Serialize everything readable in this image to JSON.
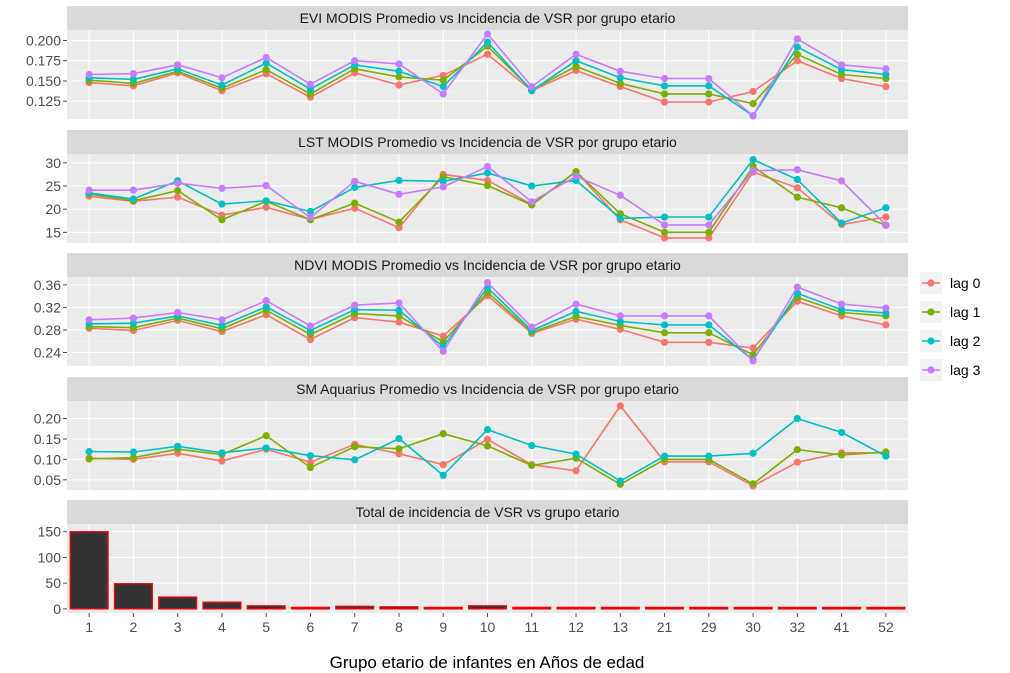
{
  "chart_data": {
    "x_axis": {
      "title": "Grupo etario de infantes en Años de edad",
      "categories": [
        "1",
        "2",
        "3",
        "4",
        "5",
        "6",
        "7",
        "8",
        "9",
        "10",
        "11",
        "12",
        "13",
        "21",
        "29",
        "30",
        "32",
        "41",
        "52"
      ]
    },
    "legend": {
      "placement": "right",
      "entries": [
        {
          "name": "lag 0",
          "color": "#F8766D"
        },
        {
          "name": "lag 1",
          "color": "#7CAE00"
        },
        {
          "name": "lag 2",
          "color": "#00BFC4"
        },
        {
          "name": "lag 3",
          "color": "#C77CFF"
        }
      ]
    },
    "panels": [
      {
        "type": "line",
        "title": "EVI MODIS Promedio vs Incidencia de VSR por grupo etario",
        "ylim": [
          0.103,
          0.213
        ],
        "yticks": [
          0.125,
          0.15,
          0.175,
          0.2
        ],
        "ytick_labels": [
          "0.125",
          "0.150",
          "0.175",
          "0.200"
        ],
        "series": [
          {
            "name": "lag 0",
            "color": "#F8766D",
            "values": [
              0.148,
              0.144,
              0.16,
              0.138,
              0.159,
              0.13,
              0.16,
              0.145,
              0.157,
              0.183,
              0.138,
              0.163,
              0.143,
              0.124,
              0.124,
              0.137,
              0.175,
              0.153,
              0.143
            ]
          },
          {
            "name": "lag 1",
            "color": "#7CAE00",
            "values": [
              0.151,
              0.147,
              0.162,
              0.141,
              0.164,
              0.134,
              0.165,
              0.155,
              0.151,
              0.193,
              0.139,
              0.168,
              0.147,
              0.134,
              0.134,
              0.122,
              0.183,
              0.158,
              0.153
            ]
          },
          {
            "name": "lag 2",
            "color": "#00BFC4",
            "values": [
              0.154,
              0.152,
              0.165,
              0.145,
              0.172,
              0.14,
              0.17,
              0.162,
              0.143,
              0.198,
              0.138,
              0.175,
              0.154,
              0.144,
              0.144,
              0.107,
              0.192,
              0.164,
              0.158
            ]
          },
          {
            "name": "lag 3",
            "color": "#C77CFF",
            "values": [
              0.158,
              0.159,
              0.17,
              0.154,
              0.179,
              0.146,
              0.175,
              0.171,
              0.134,
              0.208,
              0.143,
              0.183,
              0.162,
              0.153,
              0.153,
              0.107,
              0.202,
              0.17,
              0.165
            ]
          }
        ]
      },
      {
        "type": "line",
        "title": "LST MODIS Promedio vs Incidencia de VSR por grupo etario",
        "ylim": [
          12.7,
          31.9
        ],
        "yticks": [
          15,
          20,
          25,
          30
        ],
        "ytick_labels": [
          "15",
          "20",
          "25",
          "30"
        ],
        "series": [
          {
            "name": "lag 0",
            "color": "#F8766D",
            "values": [
              22.8,
              21.7,
              22.6,
              18.7,
              20.4,
              17.8,
              20.2,
              16.0,
              27.5,
              26.2,
              21.0,
              28.1,
              17.7,
              13.8,
              13.8,
              28.0,
              24.6,
              16.7,
              18.3
            ]
          },
          {
            "name": "lag 1",
            "color": "#7CAE00",
            "values": [
              23.3,
              21.8,
              24.0,
              17.7,
              21.7,
              17.7,
              21.3,
              17.2,
              27.0,
              25.1,
              20.9,
              28.1,
              19.0,
              15.0,
              15.0,
              29.2,
              22.6,
              20.3,
              16.5
            ]
          },
          {
            "name": "lag 2",
            "color": "#00BFC4",
            "values": [
              23.5,
              22.2,
              26.1,
              21.1,
              21.8,
              19.5,
              24.7,
              26.2,
              26.0,
              27.8,
              25.0,
              26.2,
              18.0,
              18.3,
              18.3,
              30.7,
              26.4,
              17.0,
              20.3
            ]
          },
          {
            "name": "lag 3",
            "color": "#C77CFF",
            "values": [
              24.1,
              24.1,
              25.6,
              24.5,
              25.1,
              18.2,
              26.0,
              23.2,
              24.8,
              29.2,
              21.6,
              27.1,
              23.0,
              16.6,
              16.6,
              28.3,
              28.5,
              26.1,
              16.6
            ]
          }
        ]
      },
      {
        "type": "line",
        "title": "NDVI MODIS Promedio vs Incidencia de VSR por grupo etario",
        "ylim": [
          0.216,
          0.374
        ],
        "yticks": [
          0.24,
          0.28,
          0.32,
          0.36
        ],
        "ytick_labels": [
          "0.24",
          "0.28",
          "0.32",
          "0.36"
        ],
        "series": [
          {
            "name": "lag 0",
            "color": "#F8766D",
            "values": [
              0.283,
              0.279,
              0.297,
              0.277,
              0.307,
              0.263,
              0.302,
              0.294,
              0.269,
              0.341,
              0.274,
              0.299,
              0.281,
              0.258,
              0.258,
              0.248,
              0.331,
              0.305,
              0.289
            ]
          },
          {
            "name": "lag 1",
            "color": "#7CAE00",
            "values": [
              0.286,
              0.284,
              0.301,
              0.282,
              0.315,
              0.272,
              0.309,
              0.305,
              0.259,
              0.347,
              0.276,
              0.304,
              0.288,
              0.275,
              0.275,
              0.236,
              0.338,
              0.311,
              0.305
            ]
          },
          {
            "name": "lag 2",
            "color": "#00BFC4",
            "values": [
              0.291,
              0.292,
              0.305,
              0.288,
              0.321,
              0.279,
              0.316,
              0.315,
              0.25,
              0.355,
              0.279,
              0.313,
              0.295,
              0.289,
              0.289,
              0.227,
              0.345,
              0.316,
              0.31
            ]
          },
          {
            "name": "lag 3",
            "color": "#C77CFF",
            "values": [
              0.298,
              0.301,
              0.311,
              0.298,
              0.332,
              0.287,
              0.324,
              0.328,
              0.242,
              0.364,
              0.285,
              0.326,
              0.305,
              0.305,
              0.305,
              0.225,
              0.356,
              0.326,
              0.319
            ]
          }
        ]
      },
      {
        "type": "line",
        "title": "SM Aquarius Promedio vs Incidencia de VSR por grupo etario",
        "ylim": [
          0.025,
          0.243
        ],
        "yticks": [
          0.05,
          0.1,
          0.15,
          0.2
        ],
        "ytick_labels": [
          "0.05",
          "0.10",
          "0.15",
          "0.20"
        ],
        "series": [
          {
            "name": "lag 0",
            "color": "#F8766D",
            "values": [
              0.103,
              0.1,
              0.115,
              0.096,
              0.125,
              0.093,
              0.137,
              0.114,
              0.087,
              0.149,
              0.087,
              0.072,
              0.231,
              0.094,
              0.094,
              0.035,
              0.093,
              0.116,
              0.116
            ]
          },
          {
            "name": "lag 1",
            "color": "#7CAE00",
            "values": [
              0.101,
              0.104,
              0.125,
              0.112,
              0.158,
              0.08,
              0.131,
              0.126,
              0.163,
              0.133,
              0.085,
              0.103,
              0.039,
              0.1,
              0.1,
              0.04,
              0.124,
              0.111,
              0.118
            ]
          },
          {
            "name": "lag 2",
            "color": "#00BFC4",
            "values": [
              0.119,
              0.118,
              0.132,
              0.116,
              0.128,
              0.109,
              0.099,
              0.151,
              0.061,
              0.173,
              0.134,
              0.113,
              0.047,
              0.108,
              0.108,
              0.115,
              0.2,
              0.166,
              0.108
            ]
          },
          {
            "name": "lag 3",
            "color": "#C77CFF",
            "values": []
          }
        ]
      },
      {
        "type": "bar",
        "title": "Total de incidencia de VSR vs grupo etario",
        "ylim": [
          -8,
          165
        ],
        "yticks": [
          0,
          50,
          100,
          150
        ],
        "ytick_labels": [
          "0",
          "50",
          "100",
          "150"
        ],
        "bar_fill": "#333333",
        "bar_outline": "#FF0000",
        "values": [
          150,
          49,
          23,
          13,
          6,
          3,
          5,
          4,
          2,
          6,
          3,
          3,
          1,
          1,
          1,
          1,
          1,
          1,
          1
        ]
      }
    ]
  }
}
